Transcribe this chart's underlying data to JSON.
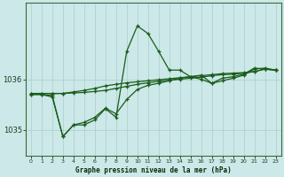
{
  "xlabel": "Graphe pression niveau de la mer (hPa)",
  "bg_color": "#cce8e8",
  "grid_color": "#aacece",
  "line_color": "#1a5c1a",
  "hours": [
    0,
    1,
    2,
    3,
    4,
    5,
    6,
    7,
    8,
    9,
    10,
    11,
    12,
    13,
    14,
    15,
    16,
    17,
    18,
    19,
    20,
    21,
    22,
    23
  ],
  "ylim": [
    1034.5,
    1037.5
  ],
  "yticks": [
    1035.0,
    1036.0
  ],
  "xlim": [
    -0.5,
    23.5
  ],
  "xticks": [
    0,
    1,
    2,
    3,
    4,
    5,
    6,
    7,
    8,
    9,
    10,
    11,
    12,
    13,
    14,
    15,
    16,
    17,
    18,
    19,
    20,
    21,
    22,
    23
  ],
  "series": [
    [
      1035.7,
      1035.7,
      1035.65,
      1034.87,
      1035.1,
      1035.1,
      1035.2,
      1035.42,
      1035.25,
      1036.55,
      1037.05,
      1036.9,
      1036.55,
      1036.18,
      1036.18,
      1036.05,
      1036.0,
      1035.92,
      1035.97,
      1036.02,
      1036.08,
      1036.2,
      1036.22,
      1036.18
    ],
    [
      1035.7,
      1035.7,
      1035.68,
      1034.87,
      1035.1,
      1035.15,
      1035.25,
      1035.43,
      1035.32,
      1035.6,
      1035.8,
      1035.88,
      1035.92,
      1035.97,
      1036.02,
      1036.05,
      1036.08,
      1035.92,
      1036.02,
      1036.05,
      1036.1,
      1036.22,
      1036.2,
      1036.18
    ],
    [
      1035.72,
      1035.72,
      1035.72,
      1035.72,
      1035.75,
      1035.78,
      1035.82,
      1035.87,
      1035.9,
      1035.93,
      1035.95,
      1035.97,
      1035.99,
      1036.01,
      1036.03,
      1036.05,
      1036.07,
      1036.09,
      1036.11,
      1036.12,
      1036.13,
      1036.15,
      1036.2,
      1036.18
    ],
    [
      1035.72,
      1035.72,
      1035.72,
      1035.72,
      1035.73,
      1035.74,
      1035.76,
      1035.78,
      1035.82,
      1035.86,
      1035.9,
      1035.93,
      1035.96,
      1035.98,
      1036.0,
      1036.02,
      1036.04,
      1036.07,
      1036.09,
      1036.1,
      1036.12,
      1036.15,
      1036.2,
      1036.18
    ]
  ]
}
